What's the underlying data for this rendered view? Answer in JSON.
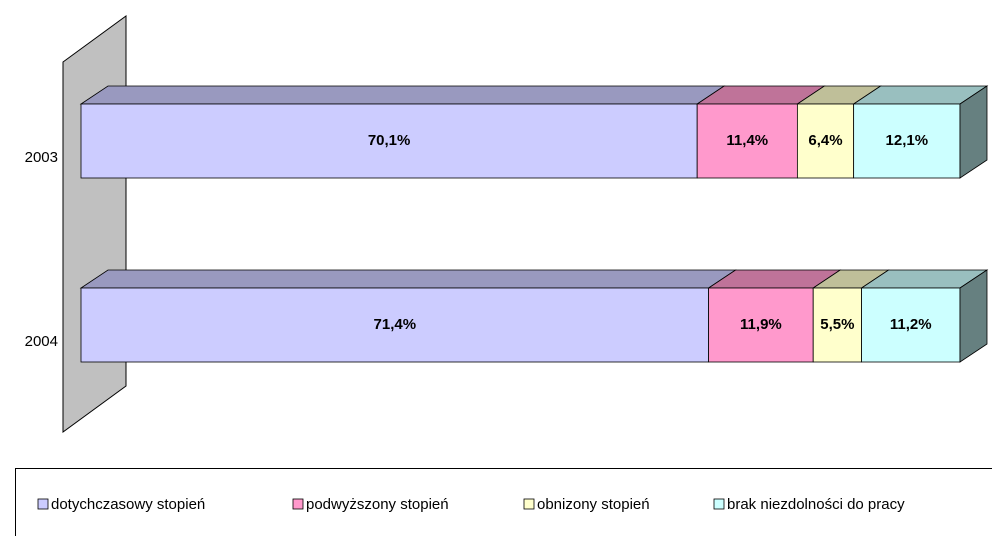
{
  "chart_data": {
    "type": "bar",
    "orientation": "horizontal",
    "stacked": true,
    "categories": [
      "2003",
      "2004"
    ],
    "series": [
      {
        "name": "dotychczasowy stopień",
        "color": "#ccccff",
        "values": [
          70.1,
          71.4
        ],
        "value_labels": [
          "70,1%",
          "71,4%"
        ]
      },
      {
        "name": "podwyższony stopień",
        "color": "#ff99cc",
        "values": [
          11.4,
          11.9
        ],
        "value_labels": [
          "11,4%",
          "11,9%"
        ]
      },
      {
        "name": "obnizony stopień",
        "color": "#ffffcc",
        "values": [
          6.4,
          5.5
        ],
        "value_labels": [
          "6,4%",
          "5,5%"
        ]
      },
      {
        "name": "brak niezdolności do pracy",
        "color": "#ccffff",
        "values": [
          12.1,
          11.2
        ],
        "value_labels": [
          "12,1%",
          "11,2%"
        ]
      }
    ],
    "legend": "bottom"
  }
}
